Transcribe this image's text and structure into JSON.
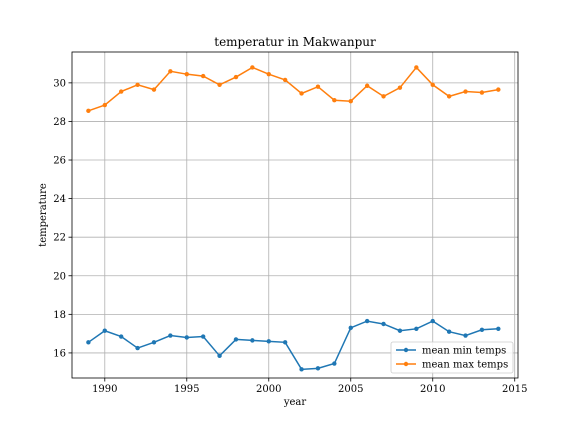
{
  "chart_data": {
    "type": "line",
    "title": "temperatur in Makwanpur",
    "xlabel": "year",
    "ylabel": "temperature",
    "xlim": [
      1988,
      2015.2
    ],
    "ylim": [
      14.7,
      31.6
    ],
    "xticks": [
      1990,
      1995,
      2000,
      2005,
      2010,
      2015
    ],
    "yticks": [
      16,
      18,
      20,
      22,
      24,
      26,
      28,
      30
    ],
    "grid": true,
    "legend_position": "lower-right",
    "x": [
      1989,
      1990,
      1991,
      1992,
      1993,
      1994,
      1995,
      1996,
      1997,
      1998,
      1999,
      2000,
      2001,
      2002,
      2003,
      2004,
      2005,
      2006,
      2007,
      2008,
      2009,
      2010,
      2011,
      2012,
      2013,
      2014
    ],
    "series": [
      {
        "name": "mean min temps",
        "color": "#1f77b4",
        "values": [
          16.55,
          17.15,
          16.85,
          16.25,
          16.55,
          16.9,
          16.8,
          16.85,
          15.85,
          16.7,
          16.65,
          16.6,
          16.55,
          15.15,
          15.2,
          15.45,
          17.3,
          17.65,
          17.5,
          17.15,
          17.25,
          17.65,
          17.1,
          16.9,
          17.2,
          17.25
        ]
      },
      {
        "name": "mean max temps",
        "color": "#ff7f0e",
        "values": [
          28.55,
          28.85,
          29.55,
          29.9,
          29.65,
          30.6,
          30.45,
          30.35,
          29.9,
          30.3,
          30.8,
          30.45,
          30.15,
          29.45,
          29.8,
          29.1,
          29.05,
          29.85,
          29.3,
          29.75,
          30.8,
          29.9,
          29.3,
          29.55,
          29.5,
          29.65
        ]
      }
    ]
  }
}
